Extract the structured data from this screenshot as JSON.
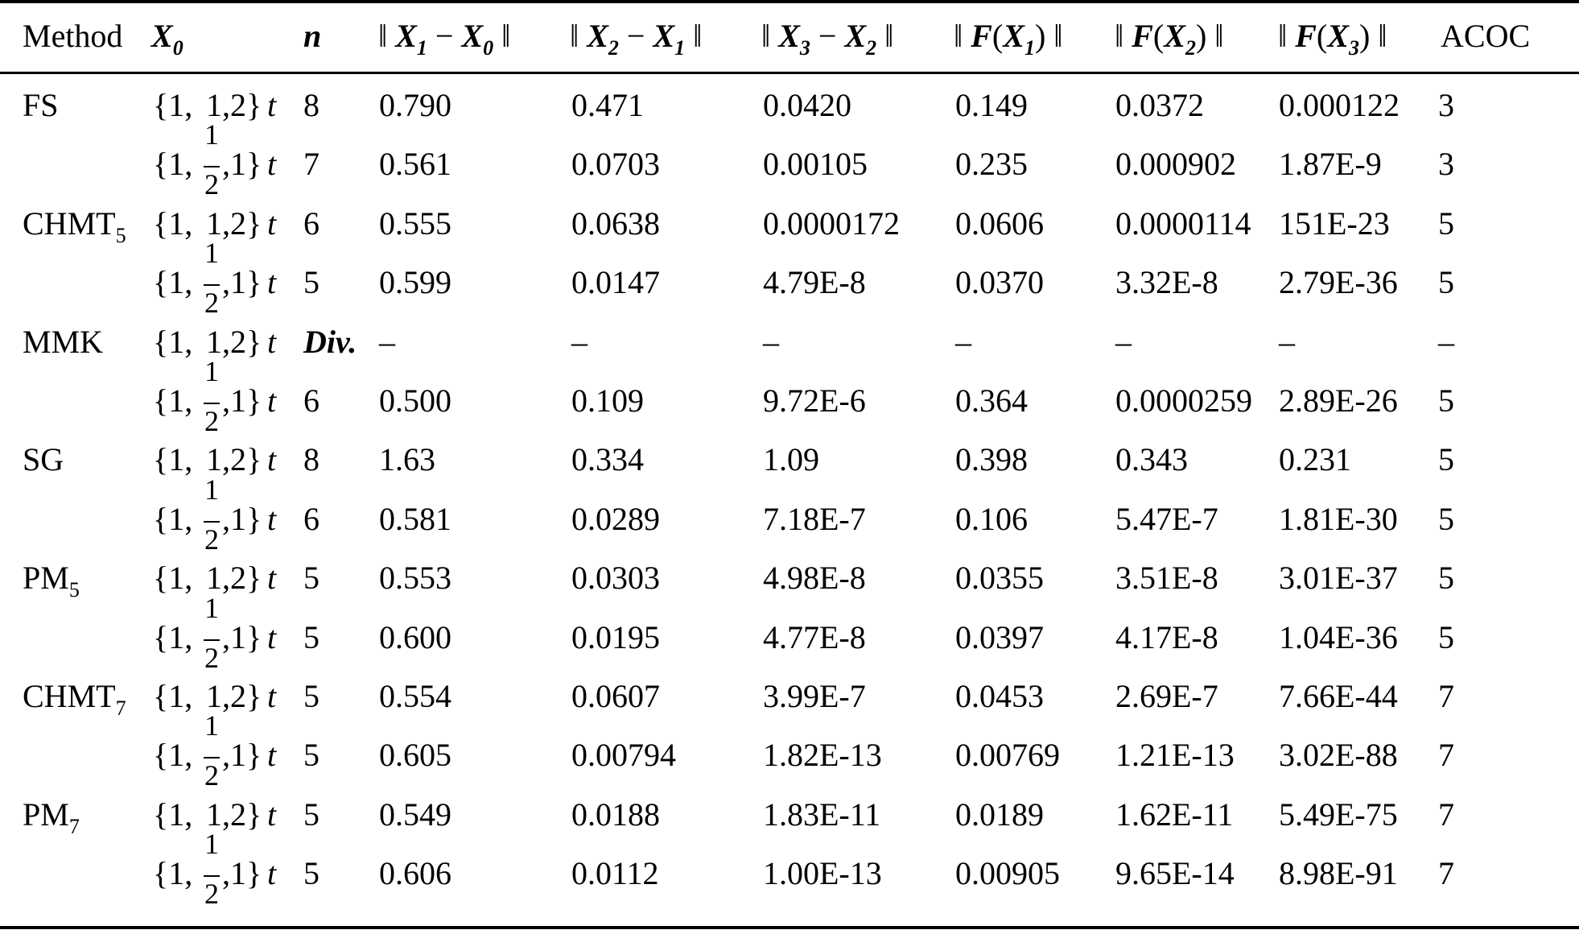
{
  "header": {
    "method": "Method",
    "x0": {
      "main": "X",
      "sub": "0"
    },
    "n": "n",
    "d1": {
      "a": "X",
      "asub": "1",
      "b": "X",
      "bsub": "0"
    },
    "d2": {
      "a": "X",
      "asub": "2",
      "b": "X",
      "bsub": "1"
    },
    "d3": {
      "a": "X",
      "asub": "3",
      "b": "X",
      "bsub": "2"
    },
    "f1": {
      "f": "F",
      "x": "X",
      "sub": "1"
    },
    "f2": {
      "f": "F",
      "x": "X",
      "sub": "2"
    },
    "f3": {
      "f": "F",
      "x": "X",
      "sub": "3"
    },
    "acoc": "ACOC"
  },
  "x0_variants": {
    "a": {
      "open": "{1,",
      "mid": "1",
      "close": ",2}",
      "t": "t"
    },
    "b": {
      "open": "{1,",
      "num": "1",
      "den": "2",
      "close": ",1}",
      "t": "t"
    }
  },
  "rows": [
    {
      "method": "FS",
      "method_sub": "",
      "x0": "a",
      "n": "8",
      "d1": "0.790",
      "d2": "0.471",
      "d3": "0.0420",
      "f1": "0.149",
      "f2": "0.0372",
      "f3": "0.000122",
      "acoc": "3"
    },
    {
      "method": "",
      "method_sub": "",
      "x0": "b",
      "n": "7",
      "d1": "0.561",
      "d2": "0.0703",
      "d3": "0.00105",
      "f1": "0.235",
      "f2": "0.000902",
      "f3": "1.87E-9",
      "acoc": "3"
    },
    {
      "method": "CHMT",
      "method_sub": "5",
      "x0": "a",
      "n": "6",
      "d1": "0.555",
      "d2": "0.0638",
      "d3": "0.0000172",
      "f1": "0.0606",
      "f2": "0.0000114",
      "f3": "151E-23",
      "acoc": "5"
    },
    {
      "method": "",
      "method_sub": "",
      "x0": "b",
      "n": "5",
      "d1": "0.599",
      "d2": "0.0147",
      "d3": "4.79E-8",
      "f1": "0.0370",
      "f2": "3.32E-8",
      "f3": "2.79E-36",
      "acoc": "5"
    },
    {
      "method": "MMK",
      "method_sub": "",
      "x0": "a",
      "n": "Div.",
      "d1": "–",
      "d2": "–",
      "d3": "–",
      "f1": "–",
      "f2": "–",
      "f3": "–",
      "acoc": "–"
    },
    {
      "method": "",
      "method_sub": "",
      "x0": "b",
      "n": "6",
      "d1": "0.500",
      "d2": "0.109",
      "d3": "9.72E-6",
      "f1": "0.364",
      "f2": "0.0000259",
      "f3": "2.89E-26",
      "acoc": "5"
    },
    {
      "method": "SG",
      "method_sub": "",
      "x0": "a",
      "n": "8",
      "d1": "1.63",
      "d2": "0.334",
      "d3": "1.09",
      "f1": "0.398",
      "f2": "0.343",
      "f3": "0.231",
      "acoc": "5"
    },
    {
      "method": "",
      "method_sub": "",
      "x0": "b",
      "n": "6",
      "d1": "0.581",
      "d2": "0.0289",
      "d3": "7.18E-7",
      "f1": "0.106",
      "f2": "5.47E-7",
      "f3": "1.81E-30",
      "acoc": "5"
    },
    {
      "method": "PM",
      "method_sub": "5",
      "x0": "a",
      "n": "5",
      "d1": "0.553",
      "d2": "0.0303",
      "d3": "4.98E-8",
      "f1": "0.0355",
      "f2": "3.51E-8",
      "f3": "3.01E-37",
      "acoc": "5"
    },
    {
      "method": "",
      "method_sub": "",
      "x0": "b",
      "n": "5",
      "d1": "0.600",
      "d2": "0.0195",
      "d3": "4.77E-8",
      "f1": "0.0397",
      "f2": "4.17E-8",
      "f3": "1.04E-36",
      "acoc": "5"
    },
    {
      "method": "CHMT",
      "method_sub": "7",
      "x0": "a",
      "n": "5",
      "d1": "0.554",
      "d2": "0.0607",
      "d3": "3.99E-7",
      "f1": "0.0453",
      "f2": "2.69E-7",
      "f3": "7.66E-44",
      "acoc": "7"
    },
    {
      "method": "",
      "method_sub": "",
      "x0": "b",
      "n": "5",
      "d1": "0.605",
      "d2": "0.00794",
      "d3": "1.82E-13",
      "f1": "0.00769",
      "f2": "1.21E-13",
      "f3": "3.02E-88",
      "acoc": "7"
    },
    {
      "method": "PM",
      "method_sub": "7",
      "x0": "a",
      "n": "5",
      "d1": "0.549",
      "d2": "0.0188",
      "d3": "1.83E-11",
      "f1": "0.0189",
      "f2": "1.62E-11",
      "f3": "5.49E-75",
      "acoc": "7"
    },
    {
      "method": "",
      "method_sub": "",
      "x0": "b",
      "n": "5",
      "d1": "0.606",
      "d2": "0.0112",
      "d3": "1.00E-13",
      "f1": "0.00905",
      "f2": "9.65E-14",
      "f3": "8.98E-91",
      "acoc": "7"
    }
  ]
}
